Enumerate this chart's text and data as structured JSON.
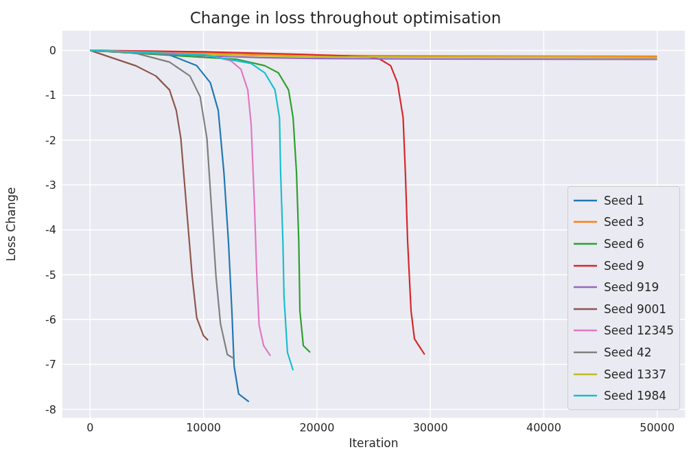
{
  "chart_data": {
    "type": "line",
    "title": "Change in loss throughout optimisation",
    "xlabel": "Iteration",
    "ylabel": "Loss Change",
    "xlim": [
      -2500,
      52500
    ],
    "xticks": [
      0,
      10000,
      20000,
      30000,
      40000,
      50000
    ],
    "ylim": [
      -8.2,
      0.45
    ],
    "yticks": [
      -8,
      -7,
      -6,
      -5,
      -4,
      -3,
      -2,
      -1,
      0
    ],
    "grid": true,
    "legend": "bottom right",
    "marker": "none",
    "line_style": "solid",
    "series": [
      {
        "name": "Seed 1",
        "color": "#1f77b4",
        "x": [
          0,
          7000,
          9400,
          10600,
          11300,
          11800,
          12200,
          12500,
          12700,
          13100,
          14000
        ],
        "values": [
          0,
          -0.1,
          -0.34,
          -0.72,
          -1.34,
          -2.73,
          -4.27,
          -5.81,
          -7.04,
          -7.66,
          -7.83
        ]
      },
      {
        "name": "Seed 3",
        "color": "#ff7f0e",
        "x": [
          0,
          5000,
          10000,
          15000,
          20000,
          30000,
          50000
        ],
        "values": [
          0,
          -0.03,
          -0.06,
          -0.09,
          -0.11,
          -0.12,
          -0.13
        ]
      },
      {
        "name": "Seed 6",
        "color": "#2ca02c",
        "x": [
          0,
          13000,
          15400,
          16600,
          17500,
          17900,
          18200,
          18400,
          18500,
          18800,
          19400
        ],
        "values": [
          0,
          -0.2,
          -0.34,
          -0.5,
          -0.88,
          -1.5,
          -2.73,
          -4.27,
          -5.81,
          -6.58,
          -6.73
        ]
      },
      {
        "name": "Seed 9",
        "color": "#d62728",
        "x": [
          0,
          10000,
          19000,
          24500,
          25600,
          26500,
          27100,
          27600,
          27800,
          28000,
          28300,
          28600,
          29500
        ],
        "values": [
          0,
          -0.03,
          -0.09,
          -0.14,
          -0.2,
          -0.34,
          -0.72,
          -1.5,
          -2.73,
          -4.27,
          -5.81,
          -6.43,
          -6.78
        ]
      },
      {
        "name": "Seed 919",
        "color": "#9467bd",
        "x": [
          0,
          5000,
          10000,
          15000,
          20000,
          30000,
          50000
        ],
        "values": [
          0,
          -0.06,
          -0.12,
          -0.16,
          -0.18,
          -0.19,
          -0.2
        ]
      },
      {
        "name": "Seed 9001",
        "color": "#8c564b",
        "x": [
          0,
          4000,
          5800,
          7000,
          7600,
          8000,
          8500,
          9000,
          9400,
          10000,
          10400
        ],
        "values": [
          0,
          -0.34,
          -0.57,
          -0.88,
          -1.34,
          -1.96,
          -3.5,
          -5.04,
          -5.96,
          -6.36,
          -6.46
        ]
      },
      {
        "name": "Seed 12345",
        "color": "#e377c2",
        "x": [
          0,
          10000,
          12400,
          13300,
          13900,
          14200,
          14500,
          14700,
          14900,
          15300,
          15900
        ],
        "values": [
          0,
          -0.08,
          -0.23,
          -0.42,
          -0.88,
          -1.65,
          -3.5,
          -5.04,
          -6.12,
          -6.58,
          -6.81
        ]
      },
      {
        "name": "Seed 42",
        "color": "#7f7f7f",
        "x": [
          0,
          4000,
          7000,
          8800,
          9700,
          10300,
          10700,
          11100,
          11500,
          12100,
          12700
        ],
        "values": [
          0,
          -0.06,
          -0.26,
          -0.57,
          -1.03,
          -1.96,
          -3.5,
          -5.04,
          -6.1,
          -6.78,
          -6.87
        ]
      },
      {
        "name": "Seed 1337",
        "color": "#bcbd22",
        "x": [
          0,
          5000,
          10000,
          15000,
          20000,
          30000,
          50000
        ],
        "values": [
          0,
          -0.05,
          -0.09,
          -0.12,
          -0.14,
          -0.15,
          -0.16
        ]
      },
      {
        "name": "Seed 1984",
        "color": "#17becf",
        "x": [
          0,
          10000,
          14200,
          15400,
          16300,
          16700,
          16800,
          17000,
          17100,
          17400,
          17900
        ],
        "values": [
          0,
          -0.1,
          -0.29,
          -0.5,
          -0.88,
          -1.5,
          -2.73,
          -4.27,
          -5.5,
          -6.73,
          -7.13
        ]
      }
    ]
  }
}
